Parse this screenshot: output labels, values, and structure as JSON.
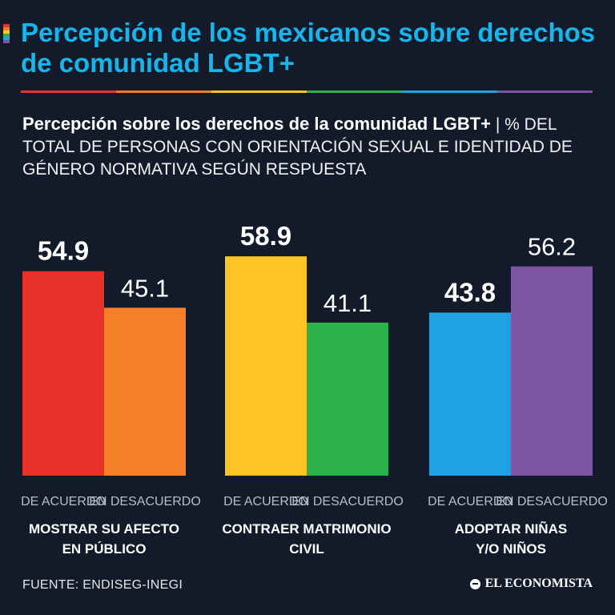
{
  "title": "Percepción de los mexicanos sobre derechos de comunidad LGBT+",
  "subtitle_bold": "Percepción sobre los derechos de la comunidad LGBT+",
  "subtitle_separator": "|",
  "subtitle_rest": "% DEL TOTAL DE PERSONAS CON ORIENTACIÓN SEXUAL E IDENTIDAD DE GÉNERO NORMATIVA SEGÚN RESPUESTA",
  "source": "FUENTE: ENDISEG-INEGI",
  "brand": "EL ECONOMISTA",
  "rainbow_colors": [
    "#e8322a",
    "#f57f27",
    "#fcc524",
    "#2bb24c",
    "#1fa1e2",
    "#7e55a3"
  ],
  "chart_data": {
    "type": "bar",
    "title": "Percepción sobre los derechos de la comunidad LGBT+",
    "ylabel": "% del total de personas con orientación sexual e identidad de género normativa",
    "ylim": [
      0,
      100
    ],
    "grid": false,
    "groups": [
      {
        "label": "MOSTRAR SU AFECTO EN PÚBLICO",
        "bars": [
          {
            "name": "DE ACUERDO",
            "value": 54.9,
            "display": "54.9",
            "color": "#e8322a",
            "bold": true
          },
          {
            "name": "EN DESACUERDO",
            "value": 45.1,
            "display": "45.1",
            "color": "#f57f27",
            "bold": false
          }
        ]
      },
      {
        "label": "CONTRAER MATRIMONIO CIVIL",
        "bars": [
          {
            "name": "DE ACUERDO",
            "value": 58.9,
            "display": "58.9",
            "color": "#fcc524",
            "bold": true
          },
          {
            "name": "EN DESACUERDO",
            "value": 41.1,
            "display": "41.1",
            "color": "#2bb24c",
            "bold": false
          }
        ]
      },
      {
        "label": "ADOPTAR NIÑAS Y/O NIÑOS",
        "bars": [
          {
            "name": "DE ACUERDO",
            "value": 43.8,
            "display": "43.8",
            "color": "#1fa1e2",
            "bold": true
          },
          {
            "name": "EN DESACUERDO",
            "value": 56.2,
            "display": "56.2",
            "color": "#7e55a3",
            "bold": false
          }
        ]
      }
    ]
  }
}
